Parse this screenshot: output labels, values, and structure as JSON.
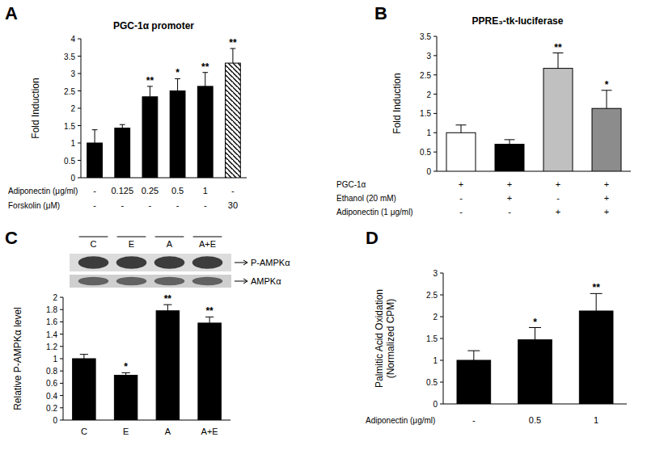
{
  "chart_data": [
    {
      "type": "bar",
      "panel": "A",
      "title": "PGC-1α promoter",
      "y_label": "Fold Induction",
      "ylim": [
        0,
        4
      ],
      "yticks": [
        0,
        0.5,
        1,
        1.5,
        2,
        2.5,
        3,
        3.5,
        4
      ],
      "series": [
        {
          "color": "#000000",
          "values": [
            1,
            1.43,
            2.33,
            2.5,
            2.63,
            null
          ],
          "errors": [
            0.38,
            0.1,
            0.3,
            0.35,
            0.4,
            null
          ]
        },
        {
          "color": "#000000",
          "line_style": "hatched",
          "values": [
            null,
            null,
            null,
            null,
            null,
            3.3
          ],
          "errors": [
            null,
            null,
            null,
            null,
            null,
            0.42
          ]
        }
      ],
      "significance": [
        null,
        null,
        "**",
        "*",
        "**",
        "**"
      ],
      "conditions": [
        {
          "label": "Adiponectin (μg/ml)",
          "values": [
            "-",
            "0.125",
            "0.25",
            "0.5",
            "1",
            "-"
          ]
        },
        {
          "label": "Forskolin (μM)",
          "values": [
            "-",
            "-",
            "-",
            "-",
            "-",
            "30"
          ]
        }
      ]
    },
    {
      "type": "bar",
      "panel": "B",
      "title": "PPRE₃-tk-luciferase",
      "y_label": "Fold Induction",
      "ylim": [
        0,
        3.5
      ],
      "yticks": [
        0,
        0.5,
        1,
        1.5,
        2,
        2.5,
        3,
        3.5
      ],
      "series": [
        {
          "colors": [
            "#ffffff",
            "#000000",
            "#c0c0c0",
            "#8c8c8c"
          ],
          "values": [
            1,
            0.7,
            2.67,
            1.63
          ],
          "errors": [
            0.2,
            0.12,
            0.4,
            0.47
          ]
        }
      ],
      "significance": [
        null,
        null,
        "**",
        "*"
      ],
      "conditions": [
        {
          "label": "PGC-1α",
          "values": [
            "+",
            "+",
            "+",
            "+"
          ]
        },
        {
          "label": "Ethanol (20 mM)",
          "values": [
            "-",
            "+",
            "-",
            "+"
          ]
        },
        {
          "label": "Adiponectin (1 μg/ml)",
          "values": [
            "-",
            "-",
            "+",
            "+"
          ]
        }
      ]
    },
    {
      "type": "bar",
      "panel": "C",
      "y_label": "Relative P-AMPKα level",
      "categories": [
        "C",
        "E",
        "A",
        "A+E"
      ],
      "ylim": [
        0,
        2
      ],
      "yticks": [
        0,
        0.2,
        0.4,
        0.6,
        0.8,
        1,
        1.2,
        1.4,
        1.6,
        1.8,
        2
      ],
      "series": [
        {
          "color": "#000000",
          "values": [
            1,
            0.73,
            1.78,
            1.58
          ],
          "errors": [
            0.07,
            0.04,
            0.1,
            0.1
          ]
        }
      ],
      "significance": [
        null,
        "*",
        "**",
        "**"
      ],
      "blot": {
        "lanes": [
          "C",
          "E",
          "A",
          "A+E"
        ],
        "bands": [
          "P-AMPKα",
          "AMPKα"
        ]
      }
    },
    {
      "type": "bar",
      "panel": "D",
      "y_label": [
        "Palmitic Acid Oxidation",
        "(Normalized CPM)"
      ],
      "ylim": [
        0,
        3
      ],
      "yticks": [
        0,
        0.5,
        1,
        1.5,
        2,
        2.5,
        3
      ],
      "series": [
        {
          "color": "#000000",
          "values": [
            1,
            1.47,
            2.13
          ],
          "errors": [
            0.22,
            0.28,
            0.4
          ]
        }
      ],
      "significance": [
        null,
        "*",
        "**"
      ],
      "conditions": [
        {
          "label": "Adiponectin (μg/ml)",
          "values": [
            "-",
            "0.5",
            "1"
          ]
        }
      ]
    }
  ]
}
